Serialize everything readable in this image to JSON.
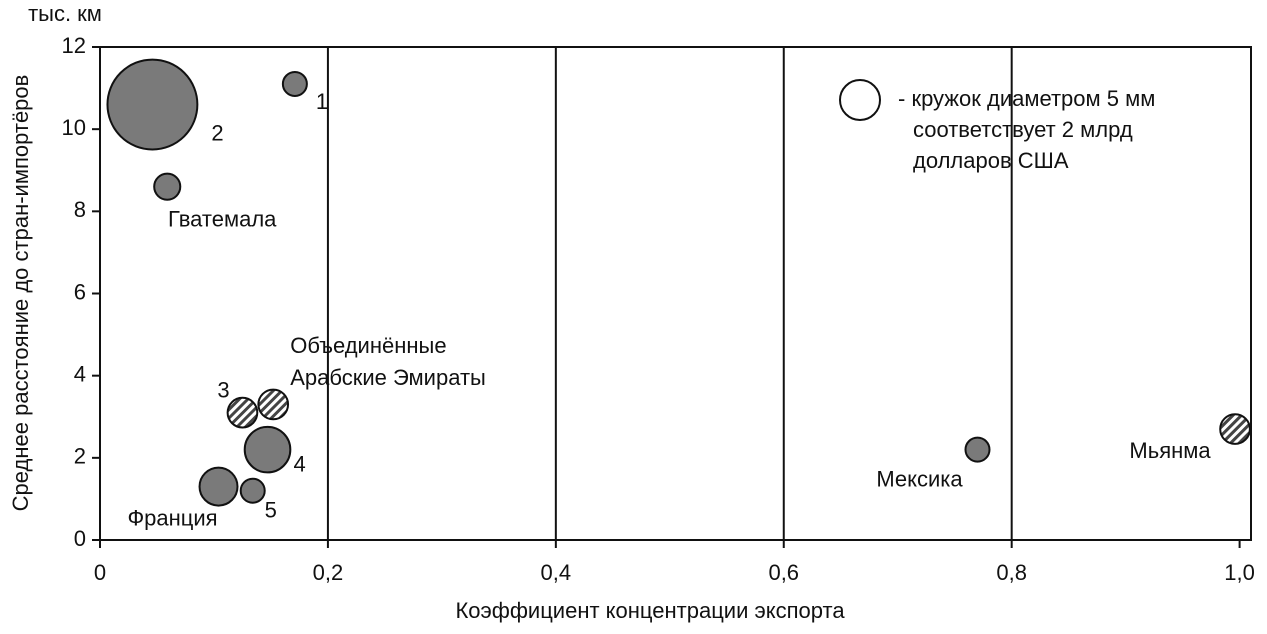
{
  "chart_data": {
    "type": "bubble",
    "unit_label": "тыс. км",
    "x_label": "Коэффициент концентрации экспорта",
    "y_label": "Среднее расстояние до стран-импортёров",
    "labels": [
      [
        "1"
      ],
      [
        "2"
      ],
      [
        "Гватемала"
      ],
      [
        "3"
      ],
      [
        "Объединённые",
        "Арабские Эмираты"
      ],
      [
        "4"
      ],
      [
        "Франция"
      ],
      [
        "5"
      ],
      [
        "Мексика"
      ],
      [
        "Мьянма"
      ]
    ],
    "x": [
      0.171,
      0.046,
      0.059,
      0.125,
      0.152,
      0.147,
      0.104,
      0.134,
      0.77,
      0.996
    ],
    "y": [
      11.1,
      10.6,
      8.6,
      3.1,
      3.3,
      2.2,
      1.3,
      1.2,
      2.2,
      2.7
    ],
    "sizes": [
      0.72,
      10.1,
      0.85,
      1.1,
      1.1,
      2.6,
      1.8,
      0.72,
      0.72,
      1.1
    ],
    "styles": [
      "solid",
      "solid",
      "solid",
      "hatched",
      "hatched",
      "solid",
      "solid",
      "solid",
      "solid",
      "hatched"
    ],
    "color": "#7a7a7a",
    "size_legend": {
      "value": 2,
      "lines": [
        "- кружок диаметром 5 мм",
        "соответствует 2 млрд",
        "долларов США"
      ]
    },
    "xlim": [
      0,
      1.01
    ],
    "ylim": [
      0,
      12
    ],
    "xticks": [
      0,
      {
        "value": 0.2,
        "label": "0,2"
      },
      {
        "value": 0.4,
        "label": "0,4"
      },
      {
        "value": 0.6,
        "label": "0,6"
      },
      {
        "value": 0.8,
        "label": "0,8"
      },
      {
        "value": 1.0,
        "label": "1,0"
      }
    ],
    "yticks": [
      0,
      2,
      4,
      6,
      8,
      10,
      12
    ],
    "grid": "x"
  }
}
